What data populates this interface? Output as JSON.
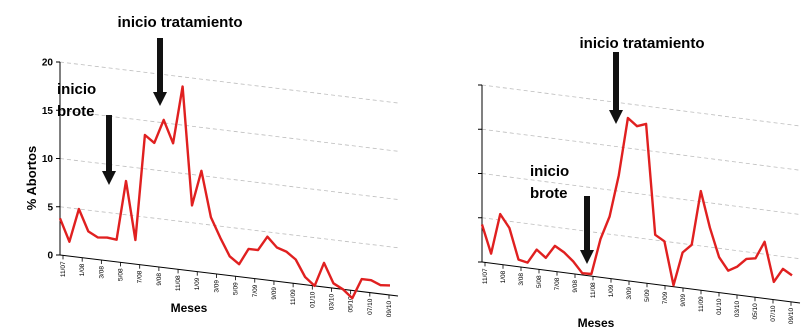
{
  "chart_data": [
    {
      "type": "line",
      "xlabel": "Meses",
      "ylabel": "% Abortos",
      "ylim": [
        0,
        20
      ],
      "yticks": [
        "0",
        "5",
        "10",
        "15",
        "20"
      ],
      "grid": true,
      "x_tick_labels": [
        "11/07",
        "1/08",
        "3/08",
        "5/08",
        "7/08",
        "9/08",
        "11/08",
        "1/09",
        "3/09",
        "5/09",
        "7/09",
        "9/09",
        "11/09",
        "01/10",
        "03/10",
        "05/10",
        "07/10",
        "09/10"
      ],
      "series": [
        {
          "color": "#e02020",
          "values": [
            3.8,
            1.5,
            5.0,
            2.8,
            2.3,
            2.4,
            2.3,
            8.5,
            2.5,
            13.5,
            12.8,
            15.3,
            13.0,
            19.0,
            6.8,
            10.5,
            5.8,
            3.8,
            2.0,
            1.3,
            3.0,
            3.0,
            4.5,
            3.5,
            3.2,
            2.5,
            0.8,
            0.0,
            2.5,
            0.5,
            0.0,
            -0.8,
            1.3,
            1.3,
            0.9,
            1.0
          ]
        }
      ],
      "annotations": [
        {
          "text": "inicio tratamiento"
        },
        {
          "text": "inicio"
        },
        {
          "text": "brote"
        }
      ]
    },
    {
      "type": "line",
      "xlabel": "Meses",
      "ylabel": "",
      "ylim": [
        0,
        50
      ],
      "grid": true,
      "x_tick_labels": [
        "11/07",
        "1/08",
        "3/08",
        "5/08",
        "7/08",
        "9/08",
        "11/08",
        "1/09",
        "3/09",
        "5/09",
        "7/09",
        "9/09",
        "11/09",
        "01/10",
        "03/10",
        "05/10",
        "07/10",
        "09/10"
      ],
      "series": [
        {
          "color": "#e02020",
          "values": [
            10.6,
            2.7,
            14.2,
            10.6,
            2.0,
            1.5,
            5.5,
            3.5,
            7.2,
            5.7,
            3.5,
            0.5,
            0.6,
            10.8,
            17.5,
            29.5,
            46.0,
            44.0,
            45.0,
            14.0,
            12.5,
            0.4,
            10.0,
            12.5,
            28.0,
            18.0,
            10.0,
            6.5,
            8.0,
            10.5,
            11.0,
            16.0,
            5.0,
            9.0,
            7.5
          ]
        }
      ],
      "annotations": [
        {
          "text": "inicio tratamiento"
        },
        {
          "text": "inicio"
        },
        {
          "text": "brote"
        }
      ]
    }
  ]
}
